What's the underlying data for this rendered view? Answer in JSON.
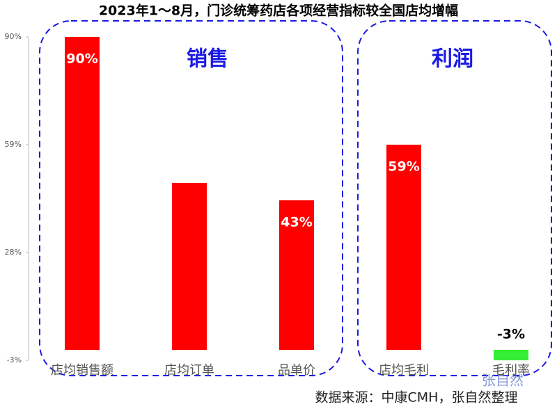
{
  "chart_data": {
    "type": "bar",
    "title": "2023年1～8月，门诊统筹药店各项经营指标较全国店均增幅",
    "categories": [
      "店均销售额",
      "店均订单",
      "品单价",
      "店均毛利",
      "毛利率"
    ],
    "values": [
      90,
      48,
      43,
      59,
      -3
    ],
    "value_labels": [
      "90%",
      null,
      "43%",
      "59%",
      "-3%"
    ],
    "colors": [
      "#ff0000",
      "#ff0000",
      "#ff0000",
      "#ff0000",
      "#33ee33"
    ],
    "ylim": [
      -3,
      90
    ],
    "yticks": [
      {
        "value": -3,
        "label": "-3%"
      },
      {
        "value": 28,
        "label": "28%"
      },
      {
        "value": 59,
        "label": "59%"
      },
      {
        "value": 90,
        "label": "90%"
      }
    ],
    "groups": [
      {
        "label": "销售"
      },
      {
        "label": "利润"
      }
    ],
    "watermark": "张自然",
    "source": "数据来源：中康CMH，张自然整理"
  }
}
